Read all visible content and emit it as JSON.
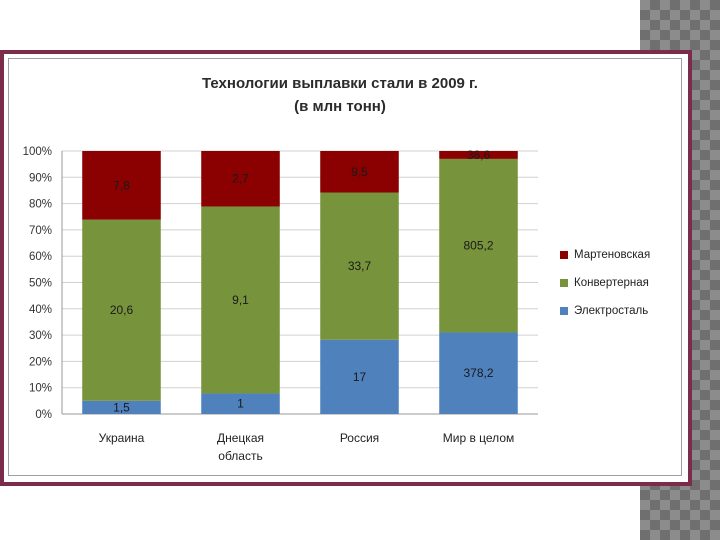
{
  "chart_data": {
    "type": "bar",
    "stacked": "percent",
    "title": "Технологии выплавки стали в 2009 г.",
    "subtitle": "(в млн тонн)",
    "categories": [
      "Украина",
      "Днецкая область",
      "Россия",
      "Мир в целом"
    ],
    "category_lines": [
      [
        "Украина"
      ],
      [
        "Днецкая",
        "область"
      ],
      [
        "Россия"
      ],
      [
        "Мир в целом"
      ]
    ],
    "series": [
      {
        "name": "Электросталь",
        "color": "#4f81bd",
        "values": [
          1.5,
          1,
          17,
          378.2
        ],
        "labels": [
          "1,5",
          "1",
          "17",
          "378,2"
        ]
      },
      {
        "name": "Конвертерная",
        "color": "#77933c",
        "values": [
          20.6,
          9.1,
          33.7,
          805.2
        ],
        "labels": [
          "20,6",
          "9,1",
          "33,7",
          "805,2"
        ]
      },
      {
        "name": "Мартеновская",
        "color": "#8b0000",
        "values": [
          7.8,
          2.7,
          9.5,
          36.6
        ],
        "labels": [
          "7,8",
          "2,7",
          "9,5",
          "36,6"
        ]
      }
    ],
    "yticks": [
      "0%",
      "10%",
      "20%",
      "30%",
      "40%",
      "50%",
      "60%",
      "70%",
      "80%",
      "90%",
      "100%"
    ],
    "ylim": [
      0,
      100
    ],
    "legend_order": [
      "Мартеновская",
      "Конвертерная",
      "Электросталь"
    ],
    "legend_position": "right",
    "grid": true
  }
}
